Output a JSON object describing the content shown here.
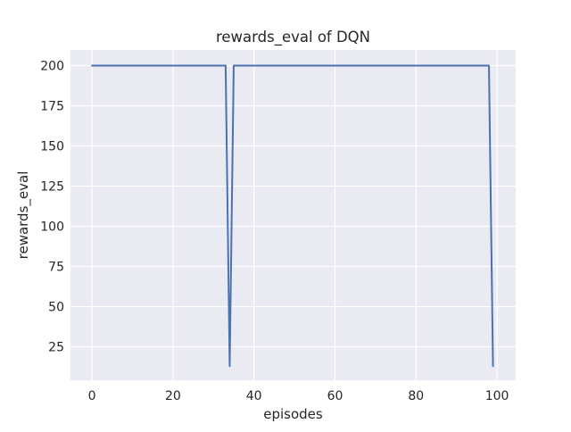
{
  "figure": {
    "background": "#ffffff"
  },
  "chart_data": {
    "type": "line",
    "title": "rewards_eval of DQN",
    "xlabel": "episodes",
    "ylabel": "rewards_eval",
    "grid": true,
    "legend": "none",
    "plot_bg": "#EAEAF2",
    "grid_color": "#FFFFFF",
    "text_color": "#262626",
    "xlim": [
      -5.3,
      104.6
    ],
    "ylim": [
      4.2,
      209.7
    ],
    "xticks": [
      0,
      20,
      40,
      60,
      80,
      100
    ],
    "yticks": [
      25,
      50,
      75,
      100,
      125,
      150,
      175,
      200
    ],
    "x": [
      0,
      1,
      2,
      3,
      4,
      5,
      6,
      7,
      8,
      9,
      10,
      11,
      12,
      13,
      14,
      15,
      16,
      17,
      18,
      19,
      20,
      21,
      22,
      23,
      24,
      25,
      26,
      27,
      28,
      29,
      30,
      31,
      32,
      33,
      34,
      35,
      36,
      37,
      38,
      39,
      40,
      41,
      42,
      43,
      44,
      45,
      46,
      47,
      48,
      49,
      50,
      51,
      52,
      53,
      54,
      55,
      56,
      57,
      58,
      59,
      60,
      61,
      62,
      63,
      64,
      65,
      66,
      67,
      68,
      69,
      70,
      71,
      72,
      73,
      74,
      75,
      76,
      77,
      78,
      79,
      80,
      81,
      82,
      83,
      84,
      85,
      86,
      87,
      88,
      89,
      90,
      91,
      92,
      93,
      94,
      95,
      96,
      97,
      98,
      99
    ],
    "series": [
      {
        "name": "rewards_eval",
        "color": "#4C72B0",
        "values": [
          200,
          200,
          200,
          200,
          200,
          200,
          200,
          200,
          200,
          200,
          200,
          200,
          200,
          200,
          200,
          200,
          200,
          200,
          200,
          200,
          200,
          200,
          200,
          200,
          200,
          200,
          200,
          200,
          200,
          200,
          200,
          200,
          200,
          200,
          13,
          200,
          200,
          200,
          200,
          200,
          200,
          200,
          200,
          200,
          200,
          200,
          200,
          200,
          200,
          200,
          200,
          200,
          200,
          200,
          200,
          200,
          200,
          200,
          200,
          200,
          200,
          200,
          200,
          200,
          200,
          200,
          200,
          200,
          200,
          200,
          200,
          200,
          200,
          200,
          200,
          200,
          200,
          200,
          200,
          200,
          200,
          200,
          200,
          200,
          200,
          200,
          200,
          200,
          200,
          200,
          200,
          200,
          200,
          200,
          200,
          200,
          200,
          200,
          200,
          13
        ]
      }
    ]
  }
}
